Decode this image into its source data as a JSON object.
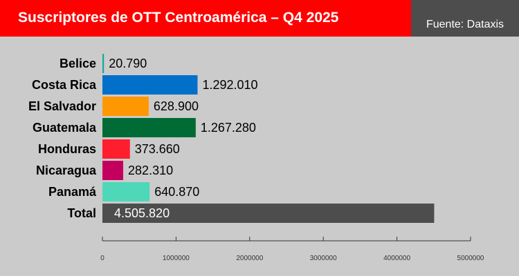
{
  "header": {
    "title": "Suscriptores de OTT Centroamérica – Q4 2025",
    "source": "Fuente: Dataxis"
  },
  "colors": {
    "title_bar": "#fe0000",
    "source_bar": "#4d4d4d",
    "background": "#cbcbcb"
  },
  "chart_data": {
    "type": "bar",
    "orientation": "horizontal",
    "categories": [
      "Belice",
      "Costa Rica",
      "El Salvador",
      "Guatemala",
      "Honduras",
      "Nicaragua",
      "Panamá",
      "Total"
    ],
    "values": [
      20790,
      1292010,
      628900,
      1267280,
      373660,
      282310,
      640870,
      4505820
    ],
    "value_labels": [
      "20.790",
      "1.292.010",
      "628.900",
      "1.267.280",
      "373.660",
      "282.310",
      "640.870",
      "4.505.820"
    ],
    "colors": [
      "#17a89a",
      "#0070c8",
      "#ff9800",
      "#006b34",
      "#ff1e2e",
      "#c4005e",
      "#4fd7b9",
      "#4d4d4d"
    ],
    "xlim": [
      0,
      5000000
    ],
    "xticks": [
      0,
      1000000,
      2000000,
      3000000,
      4000000,
      5000000
    ],
    "xtick_labels": [
      "0",
      "1000000",
      "2000000",
      "3000000",
      "4000000",
      "5000000"
    ],
    "grid": false,
    "legend": "none"
  }
}
